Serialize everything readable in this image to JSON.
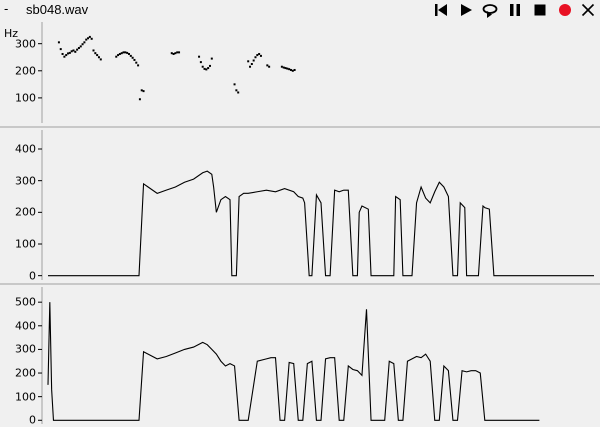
{
  "window": {
    "menu_glyph": "-",
    "filename": "sb048.wav"
  },
  "controls": [
    {
      "name": "skip-to-start-button",
      "icon": "skip-back-icon"
    },
    {
      "name": "play-button",
      "icon": "play-icon"
    },
    {
      "name": "loop-play-button",
      "icon": "loop-icon"
    },
    {
      "name": "pause-button",
      "icon": "pause-icon"
    },
    {
      "name": "stop-button",
      "icon": "stop-icon"
    },
    {
      "name": "record-button",
      "icon": "record-icon",
      "color": "#e81123"
    },
    {
      "name": "close-button",
      "icon": "close-icon"
    }
  ],
  "chart_data": [
    {
      "type": "scatter",
      "ylabel": "Hz",
      "ylim": [
        0,
        380
      ],
      "yticks": [
        100,
        200,
        300
      ],
      "points": [
        [
          0.12,
          305
        ],
        [
          0.14,
          280
        ],
        [
          0.16,
          262
        ],
        [
          0.18,
          252
        ],
        [
          0.2,
          258
        ],
        [
          0.22,
          264
        ],
        [
          0.24,
          266
        ],
        [
          0.26,
          272
        ],
        [
          0.28,
          275
        ],
        [
          0.3,
          270
        ],
        [
          0.32,
          278
        ],
        [
          0.34,
          284
        ],
        [
          0.36,
          290
        ],
        [
          0.38,
          298
        ],
        [
          0.4,
          305
        ],
        [
          0.42,
          315
        ],
        [
          0.44,
          320
        ],
        [
          0.46,
          325
        ],
        [
          0.48,
          318
        ],
        [
          0.5,
          275
        ],
        [
          0.52,
          265
        ],
        [
          0.54,
          258
        ],
        [
          0.56,
          250
        ],
        [
          0.58,
          242
        ],
        [
          0.75,
          252
        ],
        [
          0.77,
          258
        ],
        [
          0.79,
          262
        ],
        [
          0.81,
          265
        ],
        [
          0.83,
          268
        ],
        [
          0.85,
          268
        ],
        [
          0.87,
          266
        ],
        [
          0.89,
          262
        ],
        [
          0.91,
          255
        ],
        [
          0.93,
          248
        ],
        [
          0.95,
          240
        ],
        [
          0.97,
          230
        ],
        [
          0.99,
          220
        ],
        [
          1.01,
          95
        ],
        [
          1.03,
          128
        ],
        [
          1.05,
          125
        ],
        [
          1.36,
          265
        ],
        [
          1.38,
          262
        ],
        [
          1.4,
          265
        ],
        [
          1.42,
          268
        ],
        [
          1.44,
          268
        ],
        [
          1.66,
          252
        ],
        [
          1.68,
          232
        ],
        [
          1.7,
          215
        ],
        [
          1.72,
          207
        ],
        [
          1.74,
          205
        ],
        [
          1.76,
          210
        ],
        [
          1.78,
          218
        ],
        [
          1.8,
          245
        ],
        [
          2.05,
          150
        ],
        [
          2.07,
          128
        ],
        [
          2.09,
          120
        ],
        [
          2.2,
          235
        ],
        [
          2.22,
          215
        ],
        [
          2.24,
          225
        ],
        [
          2.26,
          238
        ],
        [
          2.28,
          250
        ],
        [
          2.3,
          258
        ],
        [
          2.32,
          262
        ],
        [
          2.34,
          255
        ],
        [
          2.41,
          220
        ],
        [
          2.43,
          215
        ],
        [
          2.57,
          215
        ],
        [
          2.59,
          212
        ],
        [
          2.61,
          210
        ],
        [
          2.63,
          208
        ],
        [
          2.65,
          206
        ],
        [
          2.67,
          203
        ],
        [
          2.69,
          200
        ],
        [
          2.71,
          203
        ]
      ]
    },
    {
      "type": "line",
      "ylim": [
        -20,
        460
      ],
      "yticks": [
        0,
        100,
        200,
        300,
        400
      ],
      "x": [
        0.0,
        1.0,
        1.05,
        1.1,
        1.2,
        1.3,
        1.4,
        1.5,
        1.6,
        1.7,
        1.75,
        1.8,
        1.82,
        1.85,
        1.9,
        1.95,
        2.0,
        2.02,
        2.07,
        2.1,
        2.15,
        2.2,
        2.3,
        2.4,
        2.5,
        2.6,
        2.7,
        2.75,
        2.8,
        2.82,
        2.87,
        2.9,
        2.95,
        3.0,
        3.05,
        3.1,
        3.15,
        3.2,
        3.25,
        3.3,
        3.35,
        3.4,
        3.42,
        3.45,
        3.52,
        3.55,
        3.6,
        3.7,
        3.8,
        3.82,
        3.87,
        3.9,
        4.0,
        4.05,
        4.1,
        4.15,
        4.2,
        4.25,
        4.3,
        4.35,
        4.4,
        4.45,
        4.5,
        4.53,
        4.58,
        4.6,
        4.65,
        4.7,
        4.73,
        4.78,
        4.8,
        4.85,
        4.9,
        4.95,
        5.0,
        5.05,
        5.1,
        5.15,
        5.2,
        5.25,
        5.3,
        5.35,
        5.4,
        5.42,
        5.45,
        5.5,
        5.53,
        5.58,
        5.6,
        5.65,
        5.7,
        5.75,
        5.8,
        5.85,
        5.88,
        5.95,
        6.0
      ],
      "y": [
        0,
        0,
        290,
        280,
        260,
        270,
        280,
        295,
        305,
        325,
        330,
        320,
        280,
        200,
        240,
        250,
        240,
        0,
        0,
        250,
        260,
        260,
        265,
        270,
        265,
        275,
        265,
        250,
        245,
        230,
        0,
        0,
        255,
        230,
        0,
        0,
        270,
        265,
        270,
        270,
        0,
        0,
        200,
        220,
        210,
        0,
        0,
        0,
        0,
        250,
        240,
        0,
        0,
        230,
        280,
        245,
        230,
        265,
        295,
        280,
        250,
        0,
        0,
        230,
        215,
        0,
        0,
        0,
        0,
        220,
        215,
        210,
        0,
        0,
        0,
        0,
        0,
        0,
        0,
        0,
        0,
        0,
        0,
        0,
        0,
        0,
        0,
        0,
        0,
        0,
        0,
        0,
        0,
        0,
        0,
        0,
        0
      ]
    },
    {
      "type": "line",
      "ylim": [
        -20,
        560
      ],
      "yticks": [
        0,
        100,
        200,
        300,
        400,
        500
      ],
      "x": [
        0.0,
        0.02,
        0.04,
        0.06,
        1.0,
        1.05,
        1.1,
        1.2,
        1.3,
        1.4,
        1.5,
        1.6,
        1.7,
        1.75,
        1.8,
        1.85,
        1.9,
        1.95,
        2.0,
        2.05,
        2.1,
        2.2,
        2.3,
        2.4,
        2.45,
        2.5,
        2.55,
        2.6,
        2.65,
        2.7,
        2.75,
        2.8,
        2.85,
        2.9,
        2.95,
        3.0,
        3.05,
        3.1,
        3.15,
        3.2,
        3.25,
        3.3,
        3.35,
        3.4,
        3.45,
        3.5,
        3.55,
        3.6,
        3.65,
        3.7,
        3.75,
        3.8,
        3.85,
        3.9,
        3.95,
        4.0,
        4.05,
        4.1,
        4.15,
        4.2,
        4.25,
        4.3,
        4.35,
        4.4,
        4.45,
        4.5,
        4.55,
        4.6,
        4.65,
        4.7,
        4.75,
        4.8,
        4.85,
        4.9,
        4.95,
        5.0,
        5.05,
        5.1,
        5.15,
        5.2,
        5.25,
        5.3,
        5.35,
        5.4
      ],
      "y": [
        150,
        500,
        130,
        0,
        0,
        290,
        280,
        260,
        270,
        285,
        300,
        310,
        330,
        320,
        300,
        280,
        250,
        230,
        240,
        230,
        0,
        0,
        250,
        260,
        265,
        265,
        0,
        0,
        245,
        240,
        0,
        0,
        240,
        250,
        0,
        0,
        260,
        265,
        265,
        0,
        0,
        230,
        215,
        210,
        190,
        470,
        0,
        0,
        0,
        0,
        250,
        240,
        0,
        0,
        250,
        260,
        270,
        265,
        280,
        250,
        0,
        0,
        230,
        210,
        0,
        0,
        210,
        205,
        210,
        210,
        200,
        0,
        0,
        0,
        0,
        0,
        0,
        0,
        0,
        0,
        0,
        0,
        0,
        0
      ]
    }
  ]
}
